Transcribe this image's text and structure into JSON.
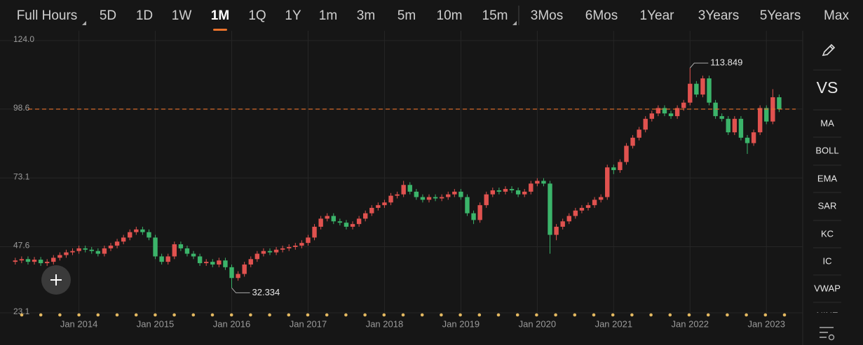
{
  "tabs": [
    "Full Hours",
    "5D",
    "1D",
    "1W",
    "1M",
    "1Q",
    "1Y",
    "1m",
    "3m",
    "5m",
    "10m",
    "15m",
    "3Mos",
    "6Mos",
    "1Year",
    "3Years",
    "5Years",
    "Max"
  ],
  "selected_tab": 4,
  "sidebar": [
    "VS",
    "MA",
    "BOLL",
    "EMA",
    "SAR",
    "KC",
    "IC",
    "VWAP",
    "NINE"
  ],
  "chart_data": {
    "type": "candlestick",
    "up_color": "#e0524f",
    "down_color": "#3bb46a",
    "last_price_color": "#e8722c",
    "grid": true,
    "xlim": [
      -2.4,
      123.7
    ],
    "ylim": [
      23.1,
      124
    ],
    "yticks": [
      {
        "value": 124,
        "label": "124.0"
      },
      98.6,
      73.1,
      47.6,
      23.1
    ],
    "xticks": [
      {
        "value": 10,
        "label": "Jan 2014"
      },
      {
        "value": 22,
        "label": "Jan 2015"
      },
      {
        "value": 34,
        "label": "Jan 2016"
      },
      {
        "value": 46,
        "label": "Jan 2017"
      },
      {
        "value": 58,
        "label": "Jan 2018"
      },
      {
        "value": 70,
        "label": "Jan 2019"
      },
      {
        "value": 82,
        "label": "Jan 2020"
      },
      {
        "value": 94,
        "label": "Jan 2021"
      },
      {
        "value": 106,
        "label": "Jan 2022"
      },
      {
        "value": 118,
        "label": "Jan 2023"
      }
    ],
    "max_candle": 106,
    "min_candle": 34,
    "candles": [
      [
        42,
        43.5,
        41,
        42.5
      ],
      [
        42.5,
        44,
        41.5,
        43
      ],
      [
        43,
        44,
        41,
        42
      ],
      [
        42,
        43.8,
        41,
        42.8
      ],
      [
        42.8,
        43.8,
        40.5,
        41.5
      ],
      [
        41.5,
        43,
        40.5,
        42
      ],
      [
        42,
        44.5,
        41,
        43.5
      ],
      [
        43.5,
        45.5,
        42.5,
        44.5
      ],
      [
        44.5,
        46.5,
        43.5,
        45.5
      ],
      [
        45.5,
        47,
        44.5,
        46
      ],
      [
        46,
        48,
        45,
        47
      ],
      [
        47,
        48,
        45.5,
        46.5
      ],
      [
        46.5,
        47.5,
        45,
        46
      ],
      [
        46,
        47,
        44,
        45
      ],
      [
        45,
        48,
        44,
        47
      ],
      [
        47,
        49,
        46,
        48
      ],
      [
        48,
        50.5,
        47,
        49.5
      ],
      [
        49.5,
        52,
        48.5,
        51
      ],
      [
        51,
        54,
        50,
        53
      ],
      [
        53,
        55,
        52,
        54
      ],
      [
        54,
        55,
        52,
        53
      ],
      [
        53,
        54,
        50,
        51
      ],
      [
        51,
        52,
        43,
        44
      ],
      [
        44,
        45,
        41,
        42
      ],
      [
        42,
        45,
        41,
        44
      ],
      [
        44,
        49.5,
        43,
        48.5
      ],
      [
        48.5,
        49.5,
        46,
        47
      ],
      [
        47,
        48,
        44,
        45
      ],
      [
        45,
        46,
        43,
        44
      ],
      [
        44,
        45,
        40.5,
        41.5
      ],
      [
        41.5,
        43,
        40.5,
        42
      ],
      [
        42,
        43,
        40,
        41
      ],
      [
        41,
        43.5,
        40,
        42.5
      ],
      [
        42.5,
        43.5,
        39,
        40
      ],
      [
        40,
        41,
        32.334,
        36
      ],
      [
        36,
        38.5,
        35,
        37.5
      ],
      [
        37.5,
        42,
        36.5,
        41
      ],
      [
        41,
        44,
        40,
        43
      ],
      [
        43,
        46,
        42,
        45
      ],
      [
        45,
        47,
        44,
        46
      ],
      [
        46,
        47,
        44.5,
        45.5
      ],
      [
        45.5,
        47.5,
        44.5,
        46.5
      ],
      [
        46.5,
        48,
        45.5,
        47
      ],
      [
        47,
        48.5,
        46,
        47.5
      ],
      [
        47.5,
        49,
        46.5,
        48
      ],
      [
        48,
        50,
        47,
        49
      ],
      [
        49,
        52,
        48,
        51
      ],
      [
        51,
        56,
        50,
        55
      ],
      [
        55,
        59,
        54,
        58
      ],
      [
        58,
        60,
        57,
        59
      ],
      [
        59,
        60,
        56,
        57
      ],
      [
        57,
        58,
        55.5,
        56.5
      ],
      [
        56.5,
        57.5,
        54,
        55
      ],
      [
        55,
        57,
        54,
        56
      ],
      [
        56,
        59,
        55,
        58
      ],
      [
        58,
        61,
        57,
        60
      ],
      [
        60,
        63,
        59,
        62
      ],
      [
        62,
        64,
        61,
        63
      ],
      [
        63,
        65,
        62,
        64
      ],
      [
        64,
        67.5,
        63,
        66.5
      ],
      [
        66.5,
        68,
        65.5,
        67
      ],
      [
        67,
        72,
        66,
        70.5
      ],
      [
        70.5,
        71.5,
        67,
        68
      ],
      [
        68,
        69,
        65,
        66
      ],
      [
        66,
        67,
        64,
        65
      ],
      [
        65,
        67,
        64,
        66
      ],
      [
        66,
        67,
        64.5,
        65.5
      ],
      [
        65.5,
        67,
        64.5,
        66
      ],
      [
        66,
        68,
        65,
        67
      ],
      [
        67,
        69,
        66,
        68
      ],
      [
        68,
        69,
        65,
        66
      ],
      [
        66,
        67,
        59,
        60
      ],
      [
        60,
        61,
        56,
        57.5
      ],
      [
        57.5,
        64,
        56.5,
        63
      ],
      [
        63,
        68,
        62,
        67
      ],
      [
        67,
        69.5,
        66,
        68.5
      ],
      [
        68.5,
        69.5,
        67,
        68
      ],
      [
        68,
        70,
        67,
        69
      ],
      [
        69,
        70,
        67.5,
        68.5
      ],
      [
        68.5,
        69.5,
        66,
        67
      ],
      [
        67,
        69,
        66,
        68
      ],
      [
        68,
        72,
        67,
        71
      ],
      [
        71,
        73,
        70,
        72
      ],
      [
        72,
        73,
        70,
        71
      ],
      [
        71,
        72,
        45,
        52
      ],
      [
        52,
        56,
        50,
        55
      ],
      [
        55,
        58,
        54,
        57
      ],
      [
        57,
        60,
        56,
        59
      ],
      [
        59,
        62,
        58,
        61
      ],
      [
        61,
        63,
        60,
        62
      ],
      [
        62,
        64,
        61,
        63
      ],
      [
        63,
        66,
        62,
        65
      ],
      [
        65,
        67,
        64,
        66
      ],
      [
        66,
        78,
        65,
        77
      ],
      [
        77,
        78,
        74.5,
        76
      ],
      [
        76,
        80,
        75,
        79
      ],
      [
        79,
        86,
        78,
        85
      ],
      [
        85,
        89,
        84,
        88
      ],
      [
        88,
        92,
        87,
        91
      ],
      [
        91,
        96,
        90,
        95
      ],
      [
        95,
        98,
        94,
        97
      ],
      [
        97,
        100,
        96,
        99
      ],
      [
        99,
        100,
        96,
        97
      ],
      [
        97,
        98,
        95,
        96
      ],
      [
        96,
        100,
        95,
        99
      ],
      [
        99,
        102,
        98,
        101
      ],
      [
        101,
        113.849,
        100,
        108
      ],
      [
        108,
        109,
        103,
        104
      ],
      [
        104,
        111,
        103,
        110
      ],
      [
        110,
        111,
        100,
        101
      ],
      [
        101,
        102,
        95,
        96
      ],
      [
        96,
        97,
        94,
        95
      ],
      [
        95,
        96,
        89,
        90
      ],
      [
        90,
        96,
        89,
        95
      ],
      [
        95,
        96,
        87,
        88
      ],
      [
        88,
        89,
        82,
        86
      ],
      [
        86,
        91,
        85,
        90
      ],
      [
        90,
        100,
        89,
        99
      ],
      [
        99,
        100,
        93,
        94
      ],
      [
        94,
        106,
        93,
        103
      ],
      [
        103,
        104,
        97.5,
        98.6
      ]
    ]
  }
}
